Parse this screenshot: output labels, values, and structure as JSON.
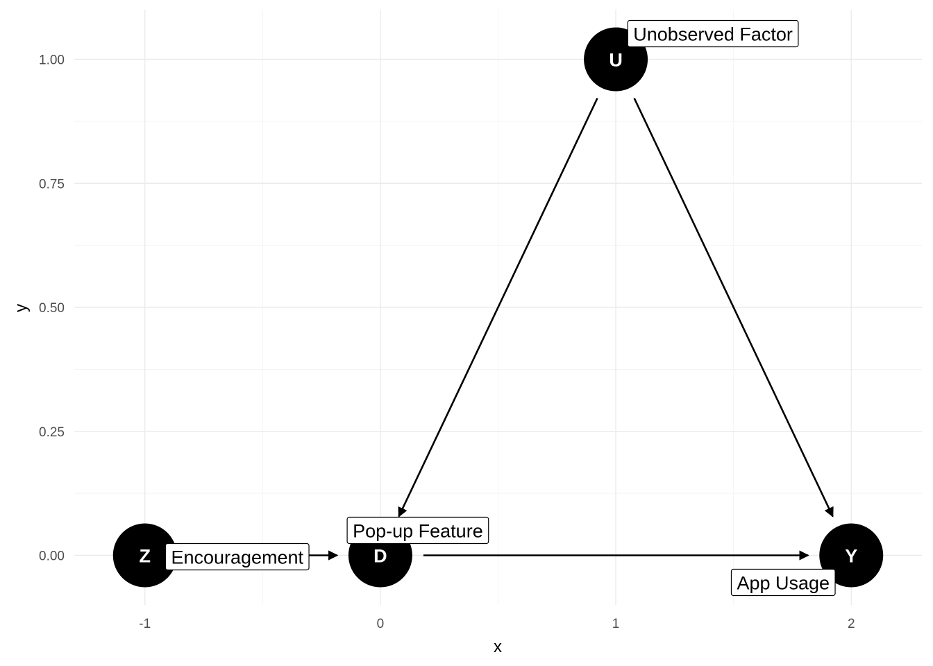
{
  "axes": {
    "x_title": "x",
    "y_title": "y",
    "x_ticks": [
      "-1",
      "0",
      "1",
      "2"
    ],
    "y_ticks": [
      "0.00",
      "0.25",
      "0.50",
      "0.75",
      "1.00"
    ],
    "xlim": [
      -1.3,
      2.3
    ],
    "ylim": [
      -0.1,
      1.1
    ],
    "grid": true
  },
  "nodes": [
    {
      "id": "Z",
      "letter": "Z",
      "label": "Encouragement",
      "x": -1,
      "y": 0
    },
    {
      "id": "D",
      "letter": "D",
      "label": "Pop-up Feature",
      "x": 0,
      "y": 0
    },
    {
      "id": "U",
      "letter": "U",
      "label": "Unobserved Factor",
      "x": 1,
      "y": 1
    },
    {
      "id": "Y",
      "letter": "Y",
      "label": "App Usage",
      "x": 2,
      "y": 0
    }
  ],
  "edges": [
    {
      "from": "Z",
      "to": "D"
    },
    {
      "from": "D",
      "to": "Y"
    },
    {
      "from": "U",
      "to": "D"
    },
    {
      "from": "U",
      "to": "Y"
    }
  ],
  "colors": {
    "node": "#000000",
    "node_text": "#ffffff",
    "edge": "#000000",
    "grid": "#ebebeb"
  }
}
